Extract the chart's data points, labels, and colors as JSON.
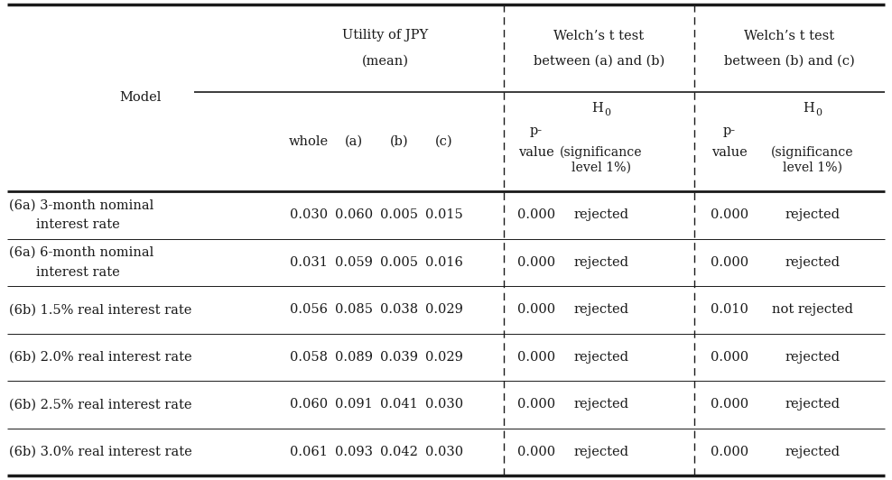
{
  "col_headers": {
    "group1_line1": "Utility of JPY",
    "group1_line2": "(mean)",
    "group2_line1": "Welch’s t test",
    "group2_line2": "between (a) and (b)",
    "group3_line1": "Welch’s t test",
    "group3_line2": "between (b) and (c)"
  },
  "rows": [
    {
      "model_line1": "(6a) 3-month nominal",
      "model_line2": "interest rate",
      "whole": "0.030",
      "a": "0.060",
      "b": "0.005",
      "c": "0.015",
      "pv1": "0.000",
      "h01": "rejected",
      "pv2": "0.000",
      "h02": "rejected"
    },
    {
      "model_line1": "(6a) 6-month nominal",
      "model_line2": "interest rate",
      "whole": "0.031",
      "a": "0.059",
      "b": "0.005",
      "c": "0.016",
      "pv1": "0.000",
      "h01": "rejected",
      "pv2": "0.000",
      "h02": "rejected"
    },
    {
      "model_line1": "(6b) 1.5% real interest rate",
      "model_line2": "",
      "whole": "0.056",
      "a": "0.085",
      "b": "0.038",
      "c": "0.029",
      "pv1": "0.000",
      "h01": "rejected",
      "pv2": "0.010",
      "h02": "not rejected"
    },
    {
      "model_line1": "(6b) 2.0% real interest rate",
      "model_line2": "",
      "whole": "0.058",
      "a": "0.089",
      "b": "0.039",
      "c": "0.029",
      "pv1": "0.000",
      "h01": "rejected",
      "pv2": "0.000",
      "h02": "rejected"
    },
    {
      "model_line1": "(6b) 2.5% real interest rate",
      "model_line2": "",
      "whole": "0.060",
      "a": "0.091",
      "b": "0.041",
      "c": "0.030",
      "pv1": "0.000",
      "h01": "rejected",
      "pv2": "0.000",
      "h02": "rejected"
    },
    {
      "model_line1": "(6b) 3.0% real interest rate",
      "model_line2": "",
      "whole": "0.061",
      "a": "0.093",
      "b": "0.042",
      "c": "0.030",
      "pv1": "0.000",
      "h01": "rejected",
      "pv2": "0.000",
      "h02": "rejected"
    }
  ],
  "font_family": "DejaVu Serif",
  "font_size": 10.5,
  "bg_color": "#ffffff",
  "text_color": "#1a1a1a",
  "line_color": "#1a1a1a"
}
